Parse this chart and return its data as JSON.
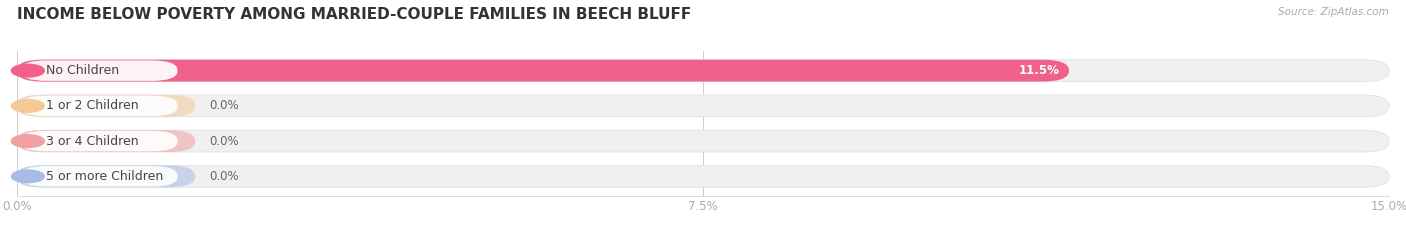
{
  "title": "INCOME BELOW POVERTY AMONG MARRIED-COUPLE FAMILIES IN BEECH BLUFF",
  "source": "Source: ZipAtlas.com",
  "categories": [
    "No Children",
    "1 or 2 Children",
    "3 or 4 Children",
    "5 or more Children"
  ],
  "values": [
    11.5,
    0.0,
    0.0,
    0.0
  ],
  "bar_colors": [
    "#f0608a",
    "#f5c898",
    "#f0a0a0",
    "#a8bce8"
  ],
  "xlim": [
    0,
    15.0
  ],
  "xticks": [
    0.0,
    7.5,
    15.0
  ],
  "xticklabels": [
    "0.0%",
    "7.5%",
    "15.0%"
  ],
  "title_fontsize": 11,
  "label_fontsize": 9,
  "value_fontsize": 8.5,
  "background_color": "#ffffff",
  "bar_height": 0.62,
  "label_bg_color": "#f5f5f5",
  "bar_bg_color": "#f0f0f0"
}
